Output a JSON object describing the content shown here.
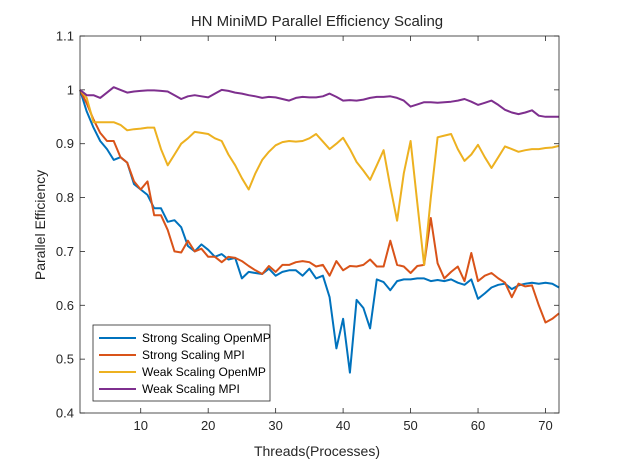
{
  "chart_data": {
    "type": "line",
    "title": "HN MiniMD Parallel Efficiency Scaling",
    "xlabel": "Threads(Processes)",
    "ylabel": "Parallel Efficiency",
    "xlim": [
      1,
      72
    ],
    "ylim": [
      0.4,
      1.1
    ],
    "xticks": [
      10,
      20,
      30,
      40,
      50,
      60,
      70
    ],
    "yticks": [
      0.4,
      0.5,
      0.6,
      0.7,
      0.8,
      0.9,
      1,
      1.1
    ],
    "ytick_labels": [
      "0.4",
      "0.5",
      "0.6",
      "0.7",
      "0.8",
      "0.9",
      "1",
      "1.1"
    ],
    "grid": false,
    "legend_position": "bottom-left",
    "x": [
      1,
      2,
      3,
      4,
      5,
      6,
      7,
      8,
      9,
      10,
      11,
      12,
      13,
      14,
      15,
      16,
      17,
      18,
      19,
      20,
      21,
      22,
      23,
      24,
      25,
      26,
      27,
      28,
      29,
      30,
      31,
      32,
      33,
      34,
      35,
      36,
      37,
      38,
      39,
      40,
      41,
      42,
      43,
      44,
      45,
      46,
      47,
      48,
      49,
      50,
      51,
      52,
      53,
      54,
      55,
      56,
      57,
      58,
      59,
      60,
      61,
      62,
      63,
      64,
      65,
      66,
      67,
      68,
      69,
      70,
      71,
      72
    ],
    "series": [
      {
        "name": "Strong Scaling OpenMP",
        "color": "#0072BD",
        "values": [
          1.0,
          0.96,
          0.93,
          0.905,
          0.89,
          0.87,
          0.875,
          0.865,
          0.825,
          0.815,
          0.805,
          0.78,
          0.78,
          0.755,
          0.758,
          0.745,
          0.71,
          0.7,
          0.713,
          0.703,
          0.69,
          0.695,
          0.685,
          0.688,
          0.65,
          0.662,
          0.66,
          0.658,
          0.668,
          0.655,
          0.662,
          0.665,
          0.665,
          0.655,
          0.668,
          0.65,
          0.655,
          0.615,
          0.52,
          0.575,
          0.475,
          0.61,
          0.595,
          0.557,
          0.648,
          0.643,
          0.628,
          0.645,
          0.648,
          0.648,
          0.65,
          0.65,
          0.645,
          0.647,
          0.645,
          0.648,
          0.642,
          0.638,
          0.648,
          0.612,
          0.622,
          0.633,
          0.638,
          0.64,
          0.63,
          0.637,
          0.64,
          0.642,
          0.64,
          0.642,
          0.64,
          0.633
        ]
      },
      {
        "name": "Strong Scaling MPI",
        "color": "#D95319",
        "values": [
          1.0,
          0.975,
          0.945,
          0.92,
          0.905,
          0.905,
          0.875,
          0.865,
          0.83,
          0.815,
          0.83,
          0.767,
          0.767,
          0.74,
          0.7,
          0.698,
          0.72,
          0.7,
          0.705,
          0.69,
          0.69,
          0.68,
          0.69,
          0.688,
          0.682,
          0.673,
          0.665,
          0.658,
          0.673,
          0.662,
          0.675,
          0.675,
          0.68,
          0.682,
          0.68,
          0.672,
          0.675,
          0.655,
          0.682,
          0.665,
          0.673,
          0.672,
          0.675,
          0.685,
          0.672,
          0.672,
          0.72,
          0.675,
          0.672,
          0.66,
          0.673,
          0.675,
          0.762,
          0.678,
          0.65,
          0.662,
          0.672,
          0.645,
          0.697,
          0.645,
          0.655,
          0.66,
          0.65,
          0.642,
          0.615,
          0.64,
          0.635,
          0.637,
          0.6,
          0.568,
          0.575,
          0.585
        ]
      },
      {
        "name": "Weak Scaling OpenMP",
        "color": "#EDB120",
        "values": [
          1.0,
          0.985,
          0.94,
          0.94,
          0.94,
          0.94,
          0.935,
          0.925,
          0.927,
          0.928,
          0.93,
          0.93,
          0.89,
          0.86,
          0.88,
          0.9,
          0.91,
          0.922,
          0.92,
          0.918,
          0.91,
          0.905,
          0.88,
          0.86,
          0.836,
          0.815,
          0.845,
          0.87,
          0.885,
          0.897,
          0.903,
          0.905,
          0.904,
          0.905,
          0.91,
          0.918,
          0.904,
          0.89,
          0.9,
          0.911,
          0.89,
          0.866,
          0.85,
          0.833,
          0.86,
          0.888,
          0.82,
          0.757,
          0.845,
          0.905,
          0.79,
          0.675,
          0.8,
          0.912,
          0.915,
          0.918,
          0.89,
          0.868,
          0.88,
          0.898,
          0.875,
          0.855,
          0.875,
          0.895,
          0.89,
          0.885,
          0.888,
          0.89,
          0.89,
          0.892,
          0.893,
          0.896
        ]
      },
      {
        "name": "Weak Scaling MPI",
        "color": "#7E2F8E",
        "values": [
          1.0,
          0.99,
          0.99,
          0.985,
          0.995,
          1.005,
          1.0,
          0.995,
          0.997,
          0.998,
          0.999,
          0.999,
          0.998,
          0.997,
          0.99,
          0.983,
          0.988,
          0.99,
          0.988,
          0.986,
          0.993,
          1.0,
          0.998,
          0.995,
          0.993,
          0.99,
          0.988,
          0.985,
          0.987,
          0.986,
          0.983,
          0.98,
          0.985,
          0.987,
          0.986,
          0.986,
          0.988,
          0.993,
          0.987,
          0.98,
          0.981,
          0.98,
          0.982,
          0.985,
          0.987,
          0.987,
          0.988,
          0.985,
          0.98,
          0.969,
          0.973,
          0.977,
          0.977,
          0.976,
          0.977,
          0.978,
          0.98,
          0.983,
          0.978,
          0.972,
          0.976,
          0.98,
          0.972,
          0.963,
          0.958,
          0.955,
          0.958,
          0.962,
          0.952,
          0.95,
          0.95,
          0.95
        ]
      }
    ]
  }
}
